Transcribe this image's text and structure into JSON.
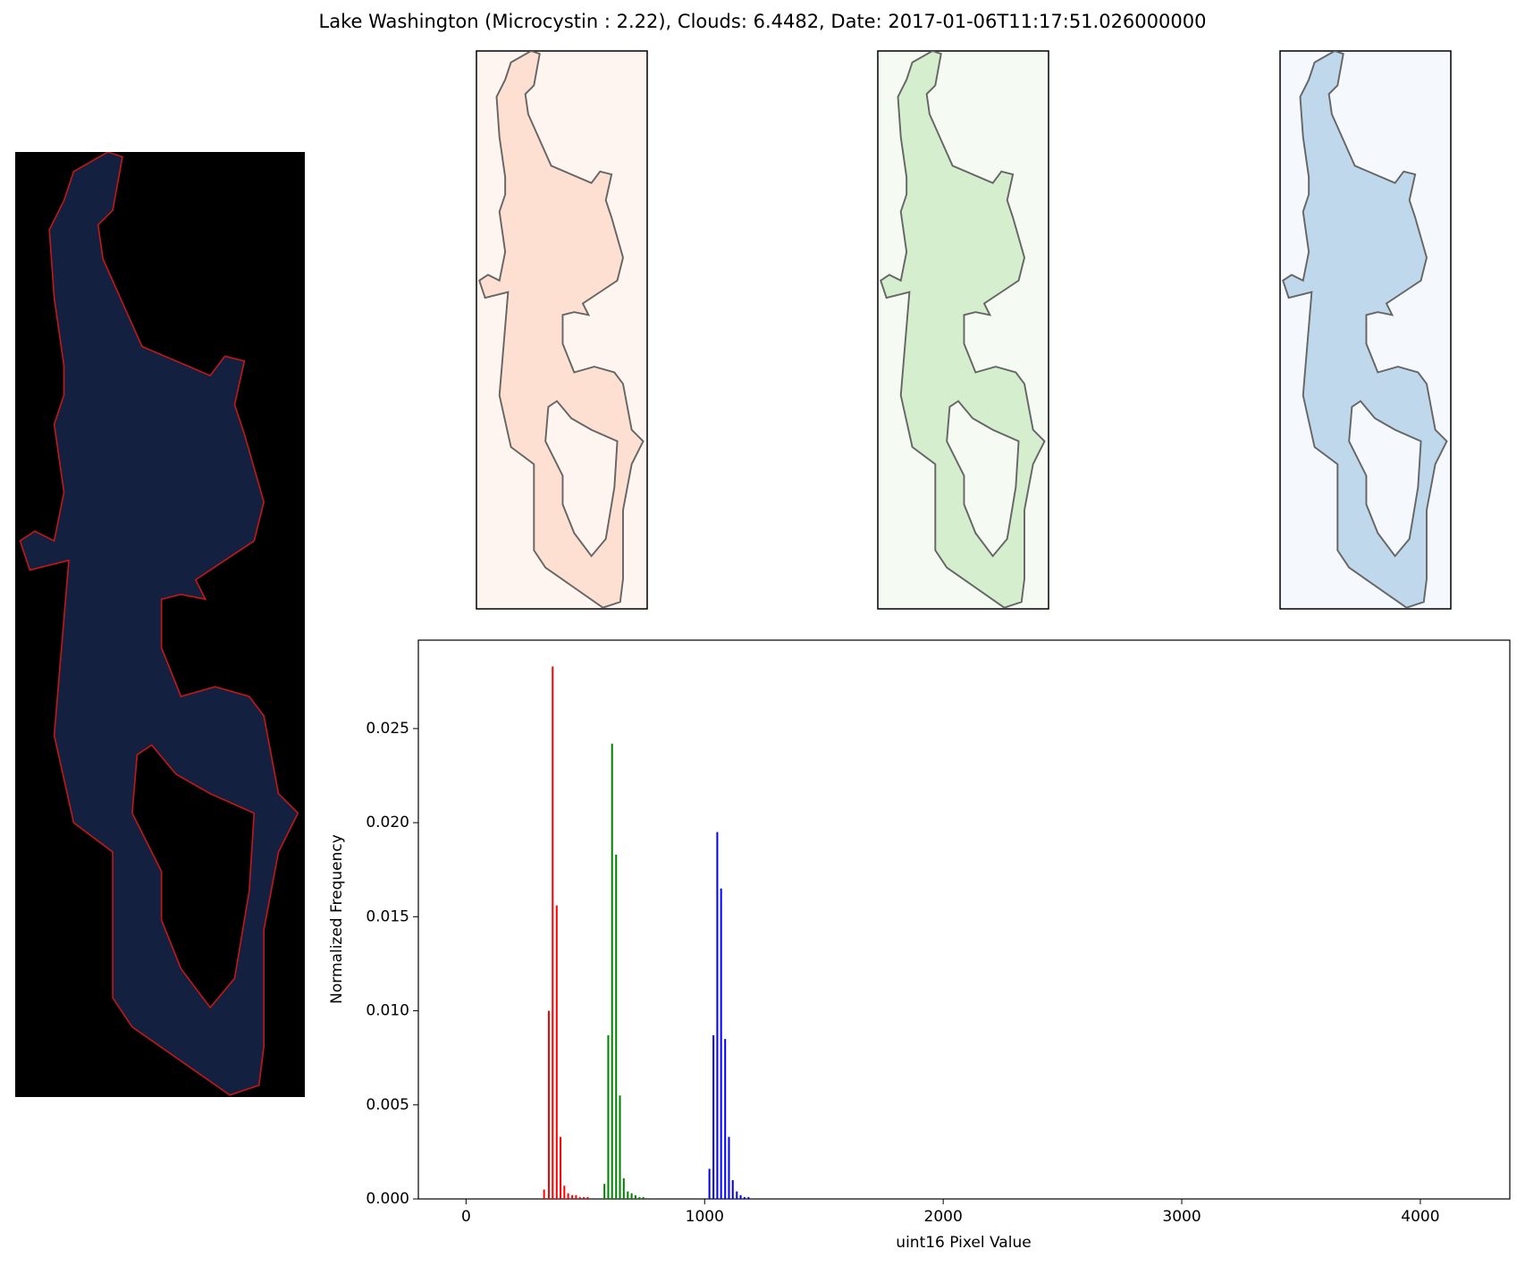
{
  "chart_data": {
    "type": "bar",
    "title": "Lake Washington (Microcystin : 2.22), Clouds: 6.4482, Date: 2017-01-06T11:17:51.026000000",
    "xlabel": "uint16 Pixel Value",
    "ylabel": "Normalized Frequency",
    "xlim": [
      -200,
      4375
    ],
    "ylim": [
      0,
      0.0297
    ],
    "xticks": [
      0,
      1000,
      2000,
      3000,
      4000
    ],
    "yticks": [
      {
        "value": 0,
        "label": "0.000"
      },
      {
        "value": 0.005,
        "label": "0.005"
      },
      {
        "value": 0.01,
        "label": "0.010"
      },
      {
        "value": 0.015,
        "label": "0.015"
      },
      {
        "value": 0.02,
        "label": "0.020"
      },
      {
        "value": 0.025,
        "label": "0.025"
      }
    ],
    "series": [
      {
        "color": "#ff0000",
        "x": [
          327,
          347,
          363,
          380,
          396,
          412,
          428,
          445,
          461,
          477,
          494,
          510
        ],
        "values": [
          0.0005,
          0.01,
          0.0283,
          0.0156,
          0.0033,
          0.0007,
          0.0003,
          0.0002,
          0.0002,
          0.0001,
          0.0001,
          0.0001
        ]
      },
      {
        "color": "#008000",
        "x": [
          580,
          596,
          612,
          629,
          645,
          661,
          678,
          694,
          710,
          727,
          743
        ],
        "values": [
          0.0008,
          0.0087,
          0.0242,
          0.0183,
          0.0055,
          0.0011,
          0.0004,
          0.0003,
          0.0002,
          0.0001,
          0.0001
        ]
      },
      {
        "color": "#0000ff",
        "x": [
          1020,
          1037,
          1053,
          1069,
          1086,
          1102,
          1118,
          1135,
          1151,
          1167,
          1184
        ],
        "values": [
          0.0016,
          0.0087,
          0.0195,
          0.0165,
          0.0085,
          0.0033,
          0.001,
          0.0004,
          0.0002,
          0.0001,
          0.0001
        ]
      }
    ]
  }
}
